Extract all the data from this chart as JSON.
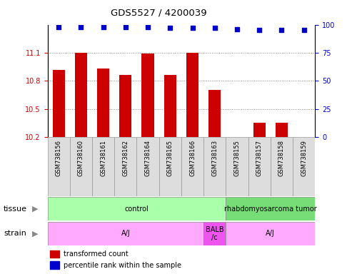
{
  "title": "GDS5527 / 4200039",
  "samples": [
    "GSM738156",
    "GSM738160",
    "GSM738161",
    "GSM738162",
    "GSM738164",
    "GSM738165",
    "GSM738166",
    "GSM738163",
    "GSM738155",
    "GSM738157",
    "GSM738158",
    "GSM738159"
  ],
  "bar_values": [
    10.92,
    11.1,
    10.93,
    10.86,
    11.09,
    10.86,
    11.1,
    10.7,
    10.2,
    10.35,
    10.35,
    10.2
  ],
  "percentile_values": [
    98,
    98,
    98,
    98,
    98,
    97,
    97,
    97,
    96,
    95,
    95,
    95
  ],
  "ylim_left": [
    10.2,
    11.4
  ],
  "ylim_right": [
    0,
    100
  ],
  "yticks_left": [
    10.2,
    10.5,
    10.8,
    11.1
  ],
  "yticks_right": [
    0,
    25,
    50,
    75,
    100
  ],
  "bar_color": "#cc0000",
  "dot_color": "#0000cc",
  "bar_bottom": 10.2,
  "tissue_groups": [
    {
      "label": "control",
      "start": 0,
      "end": 7,
      "color": "#aaffaa"
    },
    {
      "label": "rhabdomyosarcoma tumor",
      "start": 8,
      "end": 11,
      "color": "#77dd77"
    }
  ],
  "strain_groups": [
    {
      "label": "A/J",
      "start": 0,
      "end": 6,
      "color": "#ffaaff"
    },
    {
      "label": "BALB\n/c",
      "start": 7,
      "end": 7,
      "color": "#ee55ee"
    },
    {
      "label": "A/J",
      "start": 8,
      "end": 11,
      "color": "#ffaaff"
    }
  ],
  "legend_bar_color": "#cc0000",
  "legend_dot_color": "#0000cc",
  "tick_label_color_left": "#cc0000",
  "tick_label_color_right": "#0000cc",
  "grid_color": "#888888",
  "label_box_color": "#dddddd",
  "tissue_label": "tissue",
  "strain_label": "strain"
}
